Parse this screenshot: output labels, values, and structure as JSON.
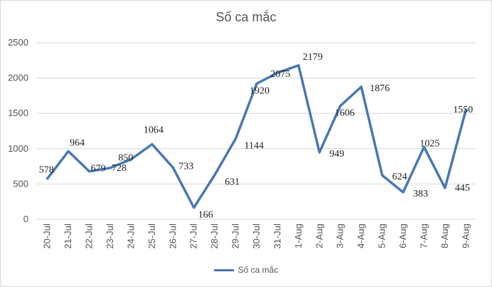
{
  "chart_data": {
    "type": "line",
    "title": "Số ca mắc",
    "xlabel": "",
    "ylabel": "",
    "ylim": [
      0,
      2500
    ],
    "yticks": [
      "0",
      "500",
      "1000",
      "1500",
      "2000",
      "2500"
    ],
    "categories": [
      "20-Jul",
      "21-Jul",
      "22-Jul",
      "23-Jul",
      "24-Jul",
      "25-Jul",
      "26-Jul",
      "27-Jul",
      "28-Jul",
      "29-Jul",
      "30-Jul",
      "31-Jul",
      "1-Aug",
      "2-Aug",
      "3-Aug",
      "4-Aug",
      "5-Aug",
      "6-Aug",
      "7-Aug",
      "8-Aug",
      "9-Aug"
    ],
    "series": [
      {
        "name": "Số ca mắc",
        "color": "#4a7ab4",
        "values": [
          578,
          964,
          679,
          728,
          850,
          1064,
          733,
          166,
          631,
          1144,
          1920,
          2075,
          2179,
          949,
          1606,
          1876,
          624,
          383,
          1025,
          445,
          1550
        ]
      }
    ],
    "grid": true,
    "legend": "bottom"
  }
}
